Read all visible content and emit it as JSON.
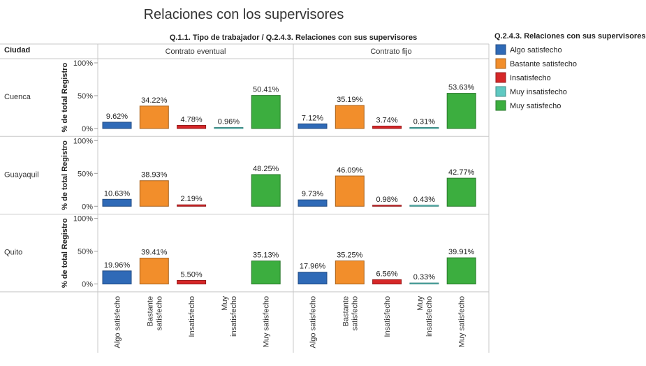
{
  "chart_data": {
    "type": "bar",
    "title": "Relaciones con los supervisores",
    "column_header": "Q.1.1. Tipo de trabajador / Q.2.4.3. Relaciones con sus supervisores",
    "row_header": "Ciudad",
    "ylabel": "% de total Registro",
    "ylim": [
      0,
      100
    ],
    "yticks": [
      "0%",
      "50%",
      "100%"
    ],
    "columns": [
      "Contrato eventual",
      "Contrato fijo"
    ],
    "rows": [
      "Cuenca",
      "Guayaquil",
      "Quito"
    ],
    "categories": [
      [
        "Algo satisfecho"
      ],
      [
        "Bastante",
        "satisfecho"
      ],
      [
        "Insatisfecho"
      ],
      [
        "Muy",
        "insatisfecho"
      ],
      [
        "Muy satisfecho"
      ]
    ],
    "series_colors": [
      "#2f6ab7",
      "#f28e2b",
      "#d62728",
      "#5fc9c2",
      "#3cae3f"
    ],
    "legend": {
      "title": "Q.2.4.3. Relaciones con sus supervisores",
      "position": "right",
      "items": [
        "Algo satisfecho",
        "Bastante satisfecho",
        "Insatisfecho",
        "Muy insatisfecho",
        "Muy satisfecho"
      ]
    },
    "panels": [
      {
        "row": "Cuenca",
        "column": "Contrato eventual",
        "values": [
          9.62,
          34.22,
          4.78,
          0.96,
          50.41
        ],
        "labels": [
          "9.62%",
          "34.22%",
          "4.78%",
          "0.96%",
          "50.41%"
        ]
      },
      {
        "row": "Cuenca",
        "column": "Contrato fijo",
        "values": [
          7.12,
          35.19,
          3.74,
          0.31,
          53.63
        ],
        "labels": [
          "7.12%",
          "35.19%",
          "3.74%",
          "0.31%",
          "53.63%"
        ]
      },
      {
        "row": "Guayaquil",
        "column": "Contrato eventual",
        "values": [
          10.63,
          38.93,
          2.19,
          null,
          48.25
        ],
        "labels": [
          "10.63%",
          "38.93%",
          "2.19%",
          "",
          "48.25%"
        ]
      },
      {
        "row": "Guayaquil",
        "column": "Contrato fijo",
        "values": [
          9.73,
          46.09,
          0.98,
          0.43,
          42.77
        ],
        "labels": [
          "9.73%",
          "46.09%",
          "0.98%",
          "0.43%",
          "42.77%"
        ]
      },
      {
        "row": "Quito",
        "column": "Contrato eventual",
        "values": [
          19.96,
          39.41,
          5.5,
          null,
          35.13
        ],
        "labels": [
          "19.96%",
          "39.41%",
          "5.50%",
          "",
          "35.13%"
        ]
      },
      {
        "row": "Quito",
        "column": "Contrato fijo",
        "values": [
          17.96,
          35.25,
          6.56,
          0.33,
          39.91
        ],
        "labels": [
          "17.96%",
          "35.25%",
          "6.56%",
          "0.33%",
          "39.91%"
        ]
      }
    ]
  }
}
